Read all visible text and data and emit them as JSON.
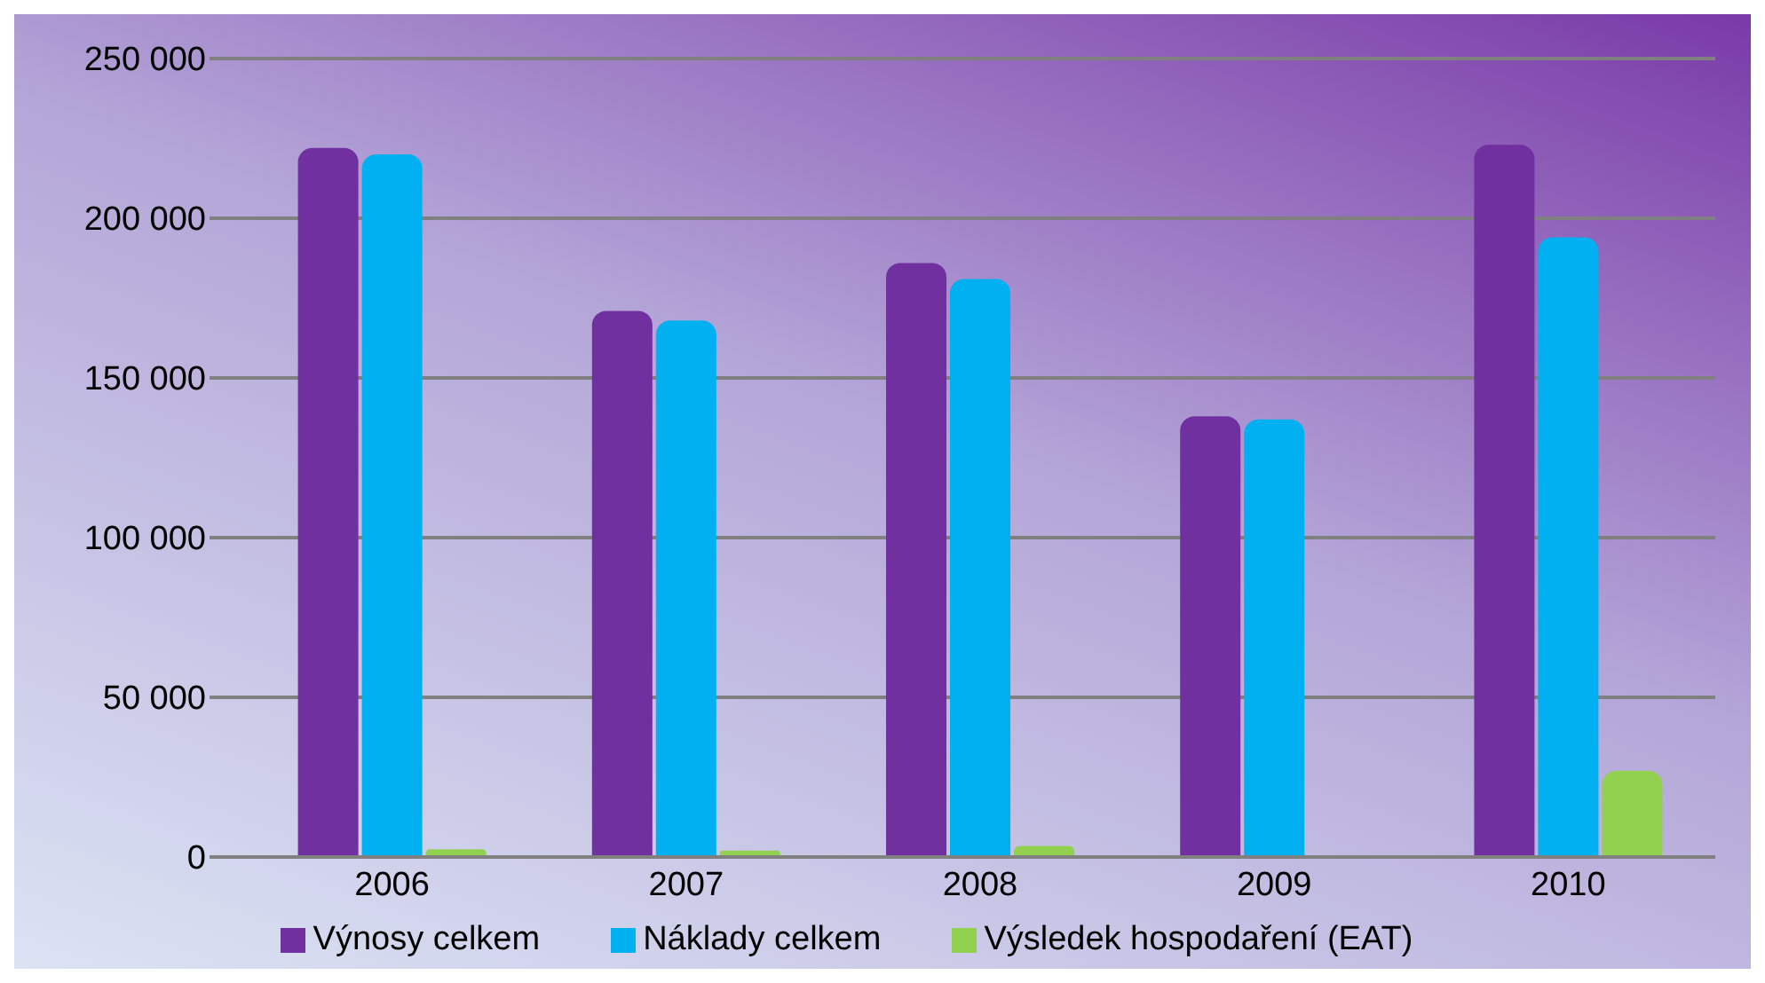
{
  "chart_data": {
    "type": "bar",
    "categories": [
      "2006",
      "2007",
      "2008",
      "2009",
      "2010"
    ],
    "series": [
      {
        "name": "Výnosy celkem",
        "color": "#7030a0",
        "values": [
          222000,
          171000,
          186000,
          138000,
          223000
        ]
      },
      {
        "name": "Náklady celkem",
        "color": "#00b0f0",
        "values": [
          220000,
          168000,
          181000,
          137000,
          194000
        ]
      },
      {
        "name": "Výsledek hospodaření (EAT)",
        "color": "#92d050",
        "values": [
          2400,
          2000,
          3500,
          500,
          27000
        ]
      }
    ],
    "ylim": [
      0,
      250000
    ],
    "yticks": [
      {
        "value": 0,
        "label": "0"
      },
      {
        "value": 50000,
        "label": "50 000"
      },
      {
        "value": 100000,
        "label": "100 000"
      },
      {
        "value": 150000,
        "label": "150 000"
      },
      {
        "value": 200000,
        "label": "200 000"
      },
      {
        "value": 250000,
        "label": "250 000"
      }
    ],
    "grid": "y",
    "legend": "bottom"
  }
}
